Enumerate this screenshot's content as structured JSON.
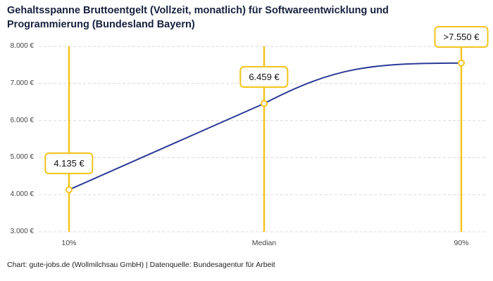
{
  "title": "Gehaltsspanne Bruttoentgelt (Vollzeit, monatlich) für Softwareentwicklung und Programmierung (Bundesland Bayern)",
  "footer": "Chart: gute-jobs.de (Wollmilchsau GmbH) | Datenquelle: Bundesagentur für Arbeit",
  "colors": {
    "line": "#2b3a97",
    "accent": "#f2c41d",
    "grid": "#d9d9d9",
    "title_text": "#16213e",
    "tick_text": "#444444"
  },
  "chart_data": {
    "type": "line",
    "title": "Gehaltsspanne Bruttoentgelt (Vollzeit, monatlich) für Softwareentwicklung und Programmierung (Bundesland Bayern)",
    "categories": [
      "10%",
      "Median",
      "90%"
    ],
    "values": [
      4135,
      6459,
      7550
    ],
    "point_labels": [
      "4.135 €",
      "6.459 €",
      ">7.550 €"
    ],
    "xlabel": "",
    "ylabel": "",
    "ylim": [
      3000,
      8000
    ],
    "yticks": [
      3000,
      4000,
      5000,
      6000,
      7000,
      8000
    ],
    "ytick_labels": [
      "3.000 €",
      "4.000 €",
      "5.000 €",
      "6.000 €",
      "7.000 €",
      "8.000 €"
    ],
    "grid": true,
    "grid_style": "dashed",
    "legend": false,
    "marker": "circle-open",
    "annotation_lines": "vertical-accent-at-each-category"
  }
}
